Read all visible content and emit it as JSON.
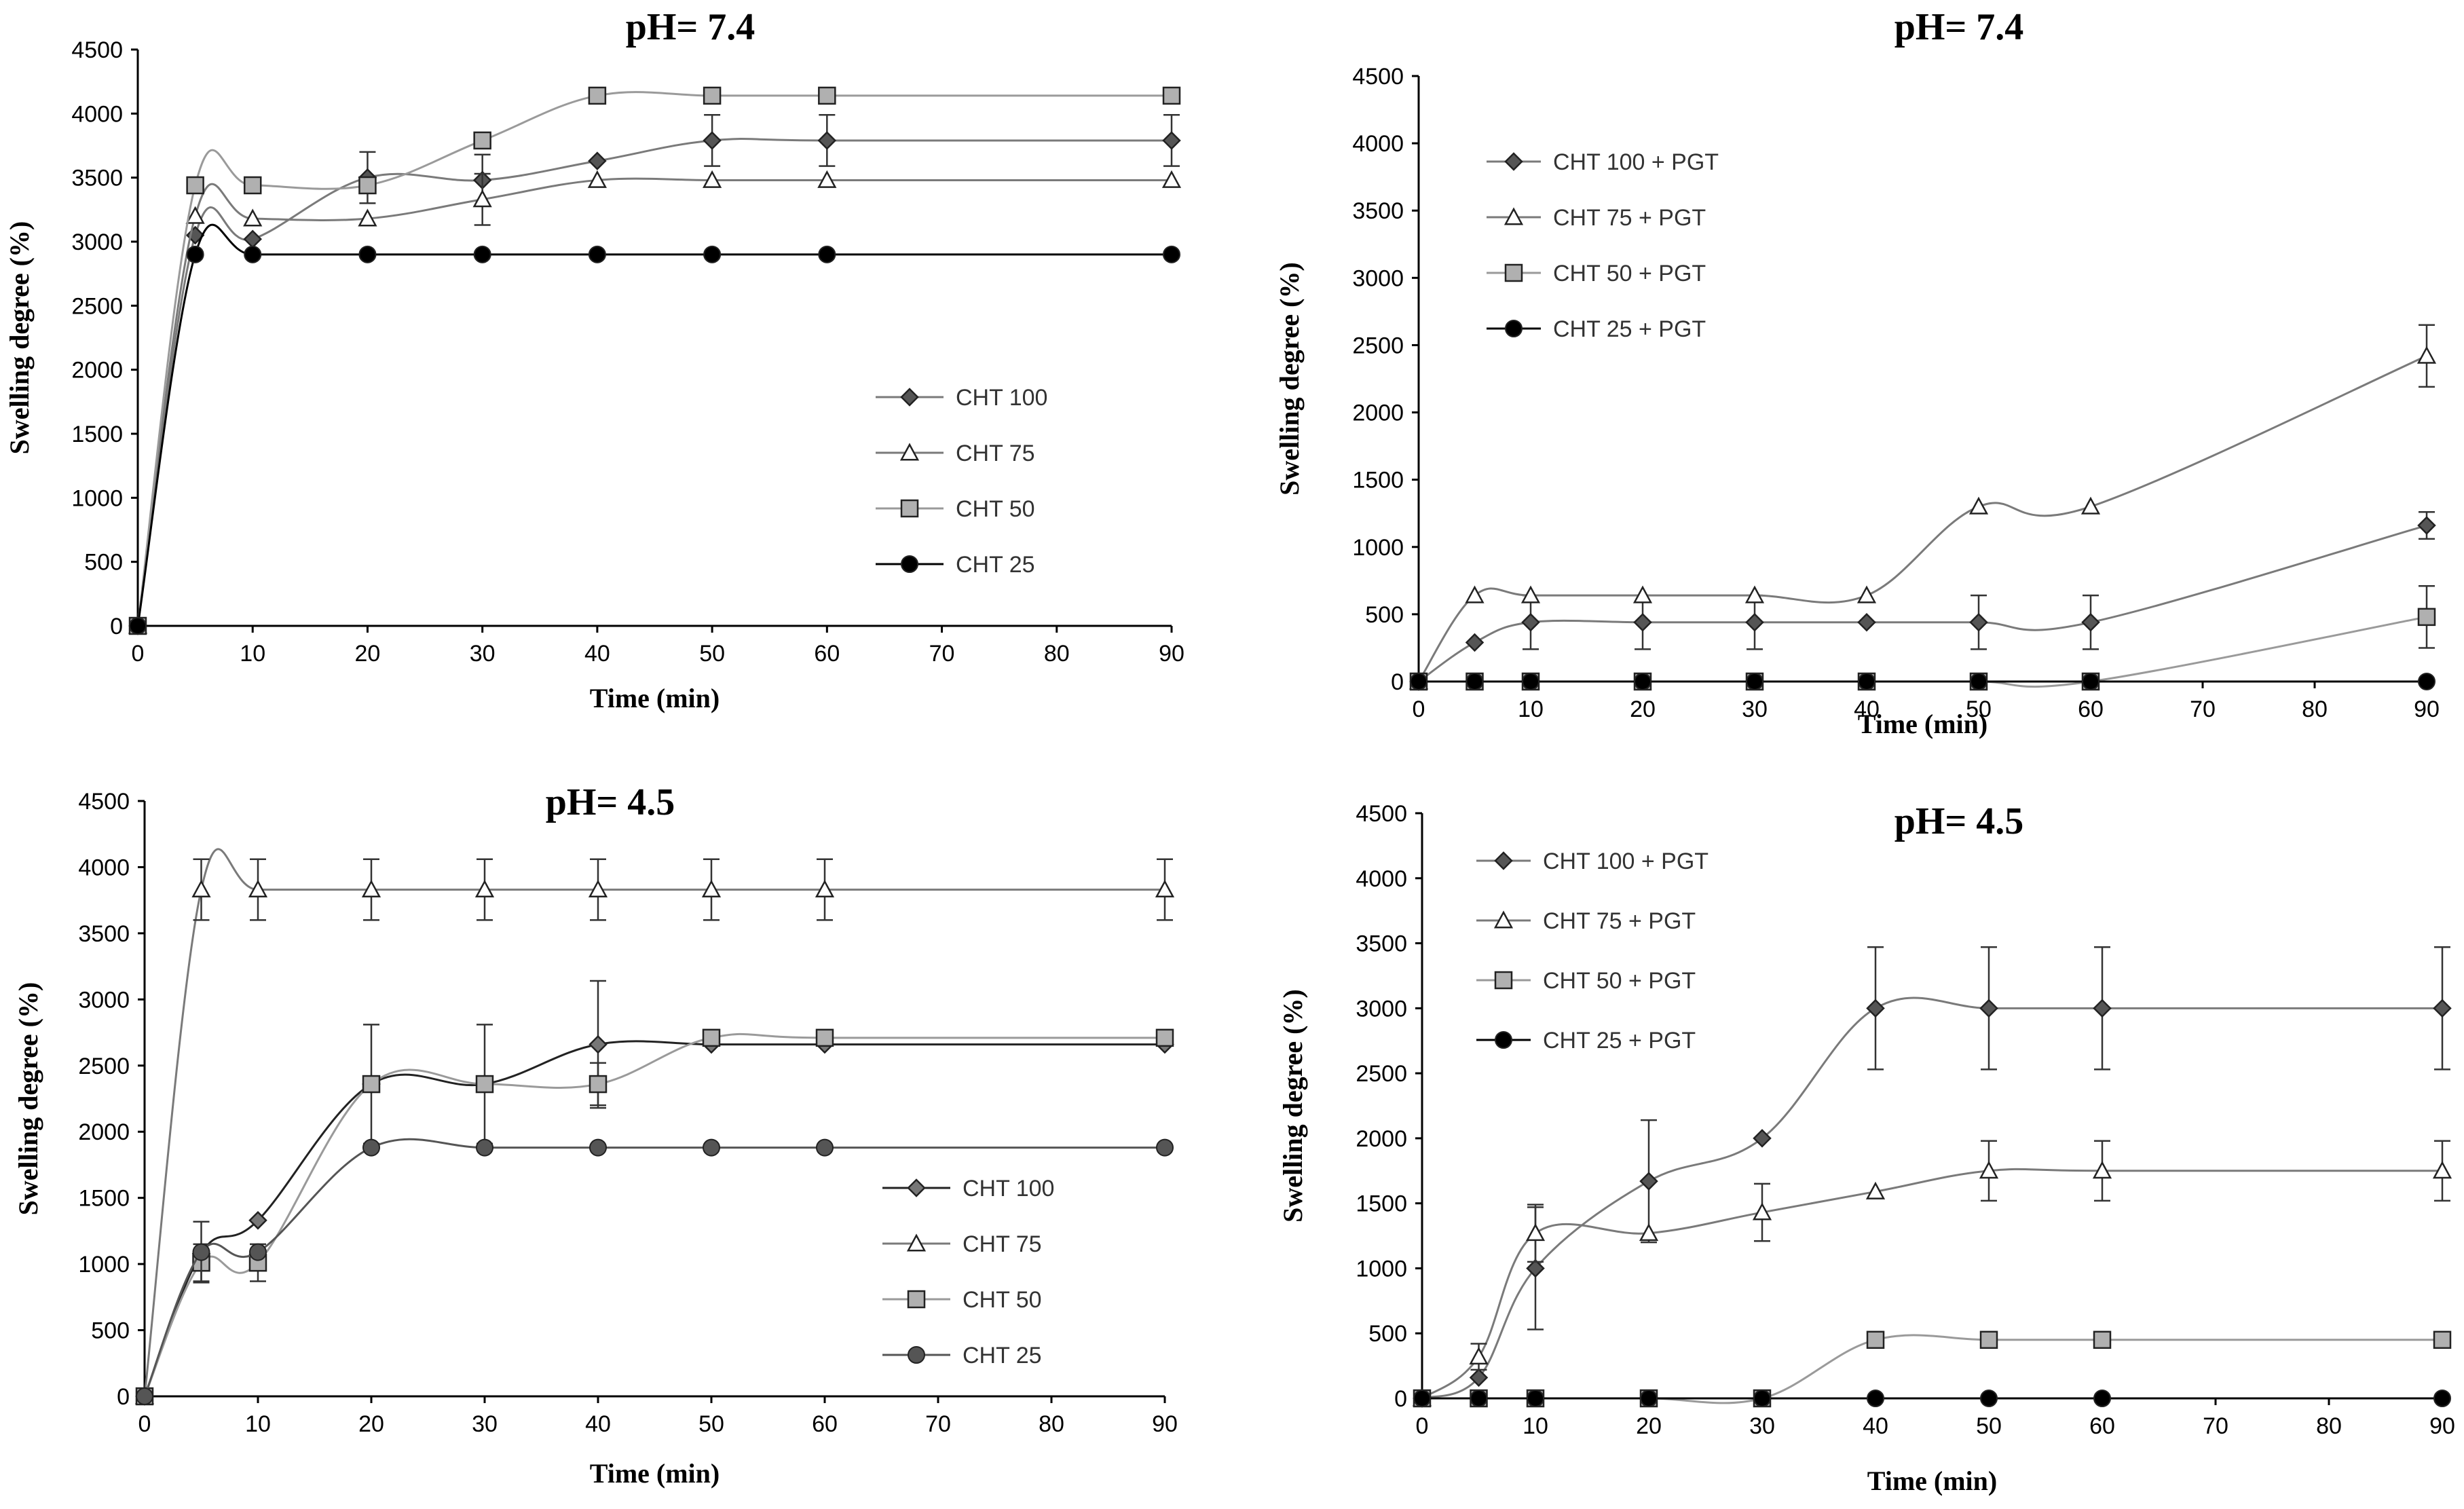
{
  "figure": {
    "colors": {
      "axis": "#000000",
      "line": "#7a7a7a",
      "marker_fill_light": "#ffffff",
      "marker_fill_gray": "#b0b0b0",
      "marker_fill_dark": "#000000"
    }
  },
  "chart_data": [
    {
      "type": "line",
      "title": "pH= 7.4",
      "xlabel": "Time (min)",
      "ylabel": "Swelling degree (%)",
      "xlim": [
        0,
        90
      ],
      "ylim": [
        0,
        4500
      ],
      "x_ticks": [
        0,
        10,
        20,
        30,
        40,
        50,
        60,
        70,
        80,
        90
      ],
      "y_ticks": [
        0,
        500,
        1000,
        1500,
        2000,
        2500,
        3000,
        3500,
        4000,
        4500
      ],
      "x": [
        0,
        5,
        10,
        20,
        30,
        40,
        50,
        60,
        90
      ],
      "legend_position": "center-right",
      "series": [
        {
          "name": "CHT 100",
          "marker": "diamond",
          "fill": "#555555",
          "line": "#7a7a7a",
          "values": [
            0,
            3050,
            3020,
            3500,
            3480,
            3630,
            3790,
            3790,
            3790
          ],
          "errors": [
            0,
            0,
            0,
            200,
            200,
            0,
            200,
            200,
            200
          ]
        },
        {
          "name": "CHT 75",
          "marker": "triangle",
          "fill": "#ffffff",
          "line": "#7a7a7a",
          "values": [
            0,
            3200,
            3180,
            3180,
            3330,
            3480,
            3480,
            3480,
            3480
          ],
          "errors": [
            0,
            0,
            0,
            0,
            200,
            0,
            0,
            0,
            0
          ]
        },
        {
          "name": "CHT 50",
          "marker": "square",
          "fill": "#b0b0b0",
          "line": "#9a9a9a",
          "values": [
            0,
            3440,
            3440,
            3440,
            3790,
            4140,
            4140,
            4140,
            4140
          ],
          "errors": [
            0,
            0,
            0,
            0,
            0,
            0,
            0,
            0,
            0
          ]
        },
        {
          "name": "CHT 25",
          "marker": "circle",
          "fill": "#000000",
          "line": "#000000",
          "values": [
            0,
            2900,
            2900,
            2900,
            2900,
            2900,
            2900,
            2900,
            2900
          ],
          "errors": [
            0,
            0,
            0,
            0,
            0,
            0,
            0,
            0,
            0
          ]
        }
      ]
    },
    {
      "type": "line",
      "title": "pH= 7.4",
      "xlabel": "Time (min)",
      "ylabel": "Swelling degree (%)",
      "xlim": [
        0,
        90
      ],
      "ylim": [
        0,
        4500
      ],
      "x_ticks": [
        0,
        10,
        20,
        30,
        40,
        50,
        60,
        70,
        80,
        90
      ],
      "y_ticks": [
        0,
        500,
        1000,
        1500,
        2000,
        2500,
        3000,
        3500,
        4000,
        4500
      ],
      "x": [
        0,
        5,
        10,
        20,
        30,
        40,
        50,
        60,
        90
      ],
      "legend_position": "top-left",
      "series": [
        {
          "name": "CHT 100 + PGT",
          "marker": "diamond",
          "fill": "#555555",
          "line": "#7a7a7a",
          "values": [
            0,
            290,
            440,
            440,
            440,
            440,
            440,
            440,
            1160
          ],
          "errors": [
            0,
            0,
            200,
            200,
            200,
            0,
            200,
            200,
            100
          ]
        },
        {
          "name": "CHT 75 + PGT",
          "marker": "triangle",
          "fill": "#ffffff",
          "line": "#7a7a7a",
          "values": [
            0,
            640,
            640,
            640,
            640,
            640,
            1300,
            1300,
            2420
          ],
          "errors": [
            0,
            0,
            0,
            0,
            0,
            0,
            0,
            0,
            230
          ]
        },
        {
          "name": "CHT 50 + PGT",
          "marker": "square",
          "fill": "#b0b0b0",
          "line": "#9a9a9a",
          "values": [
            0,
            0,
            0,
            0,
            0,
            0,
            0,
            0,
            480
          ],
          "errors": [
            0,
            0,
            0,
            0,
            0,
            0,
            0,
            0,
            230
          ]
        },
        {
          "name": "CHT 25 + PGT",
          "marker": "circle",
          "fill": "#000000",
          "line": "#000000",
          "values": [
            0,
            0,
            0,
            0,
            0,
            0,
            0,
            0,
            0
          ],
          "errors": [
            0,
            0,
            0,
            0,
            0,
            0,
            0,
            0,
            0
          ]
        }
      ]
    },
    {
      "type": "line",
      "title": "pH= 4.5",
      "xlabel": "Time (min)",
      "ylabel": "Swelling degree (%)",
      "xlim": [
        0,
        90
      ],
      "ylim": [
        0,
        4500
      ],
      "x_ticks": [
        0,
        10,
        20,
        30,
        40,
        50,
        60,
        70,
        80,
        90
      ],
      "y_ticks": [
        0,
        500,
        1000,
        1500,
        2000,
        2500,
        3000,
        3500,
        4000,
        4500
      ],
      "x": [
        0,
        5,
        10,
        20,
        30,
        40,
        50,
        60,
        90
      ],
      "legend_position": "center-right",
      "series": [
        {
          "name": "CHT 100",
          "marker": "diamond",
          "fill": "#777777",
          "line": "#222222",
          "values": [
            0,
            1080,
            1330,
            2360,
            2360,
            2660,
            2660,
            2660,
            2660
          ],
          "errors": [
            0,
            0,
            0,
            450,
            450,
            480,
            0,
            0,
            0
          ]
        },
        {
          "name": "CHT 75",
          "marker": "triangle",
          "fill": "#ffffff",
          "line": "#7a7a7a",
          "values": [
            0,
            3830,
            3830,
            3830,
            3830,
            3830,
            3830,
            3830,
            3830
          ],
          "errors": [
            0,
            230,
            230,
            230,
            230,
            230,
            230,
            230,
            230
          ]
        },
        {
          "name": "CHT 50",
          "marker": "square",
          "fill": "#b0b0b0",
          "line": "#9a9a9a",
          "values": [
            0,
            1010,
            1010,
            2360,
            2360,
            2360,
            2710,
            2710,
            2710
          ],
          "errors": [
            0,
            140,
            140,
            0,
            0,
            160,
            0,
            0,
            0
          ]
        },
        {
          "name": "CHT 25",
          "marker": "circle",
          "fill": "#555555",
          "line": "#555555",
          "values": [
            0,
            1090,
            1090,
            1880,
            1880,
            1880,
            1880,
            1880,
            1880
          ],
          "errors": [
            0,
            230,
            0,
            0,
            0,
            0,
            0,
            0,
            0
          ]
        }
      ]
    },
    {
      "type": "line",
      "title": "pH= 4.5",
      "xlabel": "Time (min)",
      "ylabel": "Swelling degree (%)",
      "xlim": [
        0,
        90
      ],
      "ylim": [
        0,
        4500
      ],
      "x_ticks": [
        0,
        10,
        20,
        30,
        40,
        50,
        60,
        70,
        80,
        90
      ],
      "y_ticks": [
        0,
        500,
        1000,
        1500,
        2000,
        2500,
        3000,
        3500,
        4000,
        4500
      ],
      "x": [
        0,
        5,
        10,
        20,
        30,
        40,
        50,
        60,
        90
      ],
      "legend_position": "top-left",
      "series": [
        {
          "name": "CHT 100 + PGT",
          "marker": "diamond",
          "fill": "#555555",
          "line": "#7a7a7a",
          "values": [
            0,
            160,
            1000,
            1670,
            2000,
            3000,
            3000,
            3000,
            3000
          ],
          "errors": [
            0,
            0,
            470,
            470,
            0,
            470,
            470,
            470,
            470
          ]
        },
        {
          "name": "CHT 75 + PGT",
          "marker": "triangle",
          "fill": "#ffffff",
          "line": "#7a7a7a",
          "values": [
            0,
            320,
            1270,
            1270,
            1430,
            1590,
            1750,
            1750,
            1750
          ],
          "errors": [
            0,
            100,
            220,
            0,
            220,
            0,
            230,
            230,
            230
          ]
        },
        {
          "name": "CHT 50 + PGT",
          "marker": "square",
          "fill": "#b0b0b0",
          "line": "#9a9a9a",
          "values": [
            0,
            0,
            0,
            0,
            0,
            450,
            450,
            450,
            450
          ],
          "errors": [
            0,
            0,
            0,
            0,
            0,
            0,
            0,
            0,
            0
          ]
        },
        {
          "name": "CHT 25 + PGT",
          "marker": "circle",
          "fill": "#000000",
          "line": "#000000",
          "values": [
            0,
            0,
            0,
            0,
            0,
            0,
            0,
            0,
            0
          ],
          "errors": [
            0,
            0,
            0,
            0,
            0,
            0,
            0,
            0,
            0
          ]
        }
      ]
    }
  ]
}
